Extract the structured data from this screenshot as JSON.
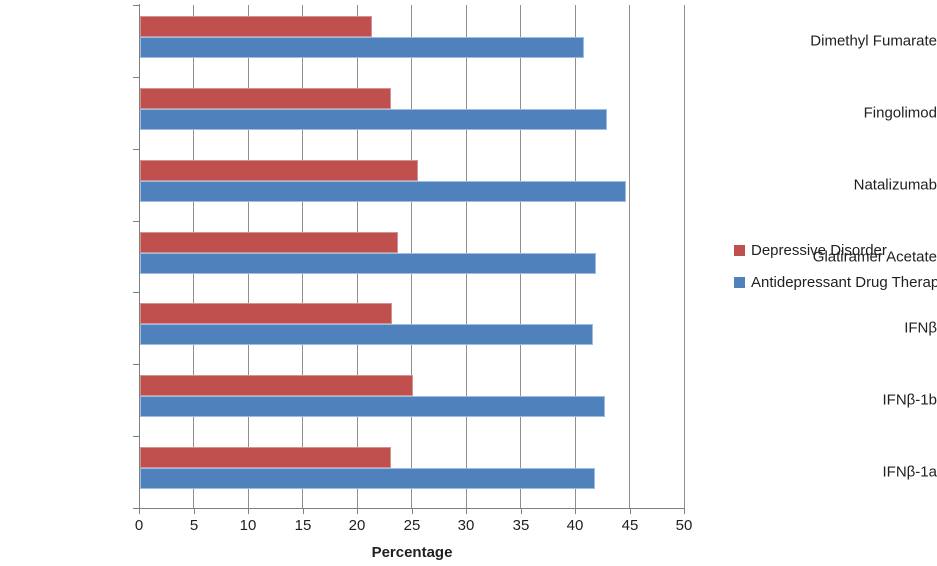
{
  "chart_data": {
    "type": "bar",
    "orientation": "horizontal",
    "title": "",
    "xlabel": "Percentage",
    "ylabel": "",
    "xlim": [
      0,
      50
    ],
    "xticks": [
      0,
      5,
      10,
      15,
      20,
      25,
      30,
      35,
      40,
      45,
      50
    ],
    "grid": true,
    "legend_position": "right",
    "categories": [
      "Dimethyl Fumarate",
      "Fingolimod",
      "Natalizumab",
      "Glatiramer Acetate",
      "IFNβ",
      "IFNβ-1b",
      "IFNβ-1a"
    ],
    "series": [
      {
        "name": "Depressive Disorder",
        "color": "#C0504D",
        "border_color": "#d09391",
        "values": [
          21.3,
          23.0,
          25.5,
          23.7,
          23.1,
          25.0,
          23.0
        ]
      },
      {
        "name": "Antidepressant Drug Therapy",
        "color": "#4F81BD",
        "border_color": "#9ebce0",
        "values": [
          40.7,
          42.8,
          44.6,
          41.8,
          41.6,
          42.7,
          41.7
        ]
      }
    ]
  },
  "colors": {
    "gridline": "#8f8f8f",
    "axis": "#7f7f7f",
    "text": "#1f1f1f",
    "background": "#ffffff"
  }
}
